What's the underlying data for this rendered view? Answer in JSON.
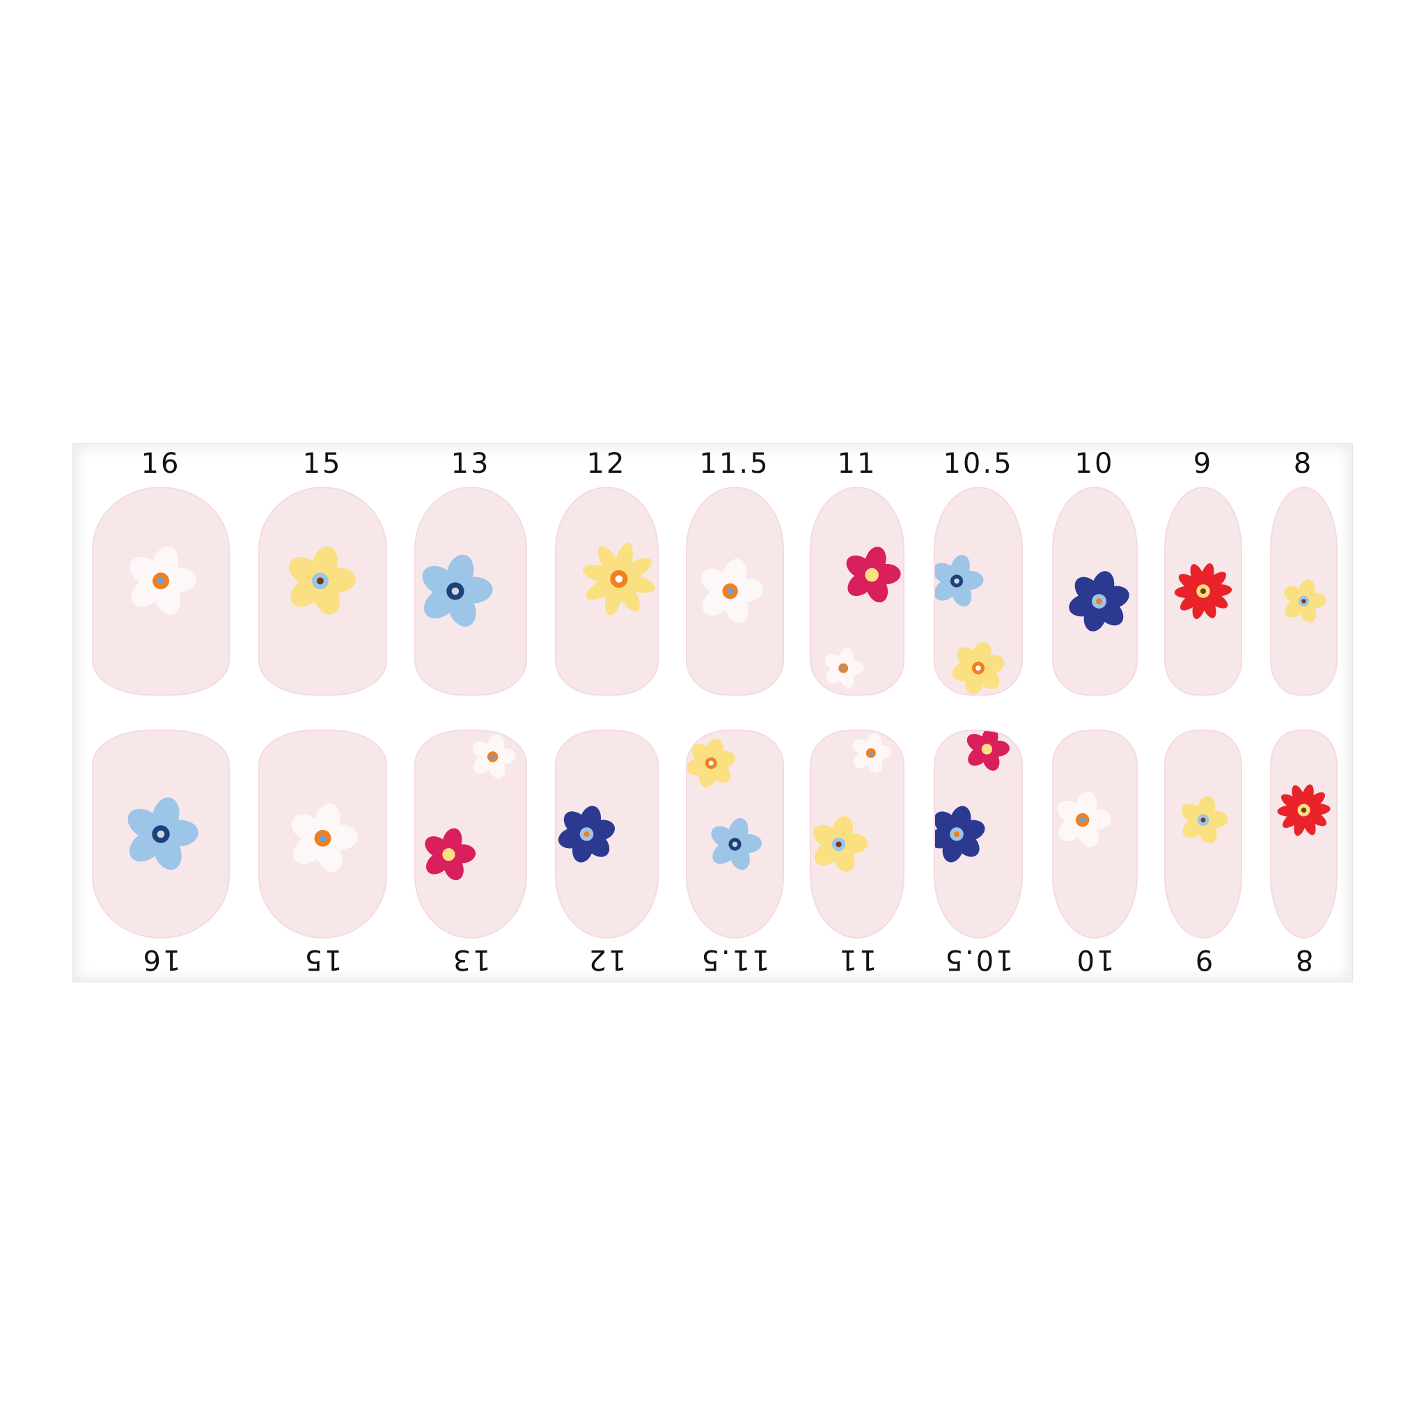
{
  "sizes_top": [
    "16",
    "15",
    "13",
    "12",
    "11.5",
    "11",
    "10.5",
    "10",
    "9",
    "8"
  ],
  "sizes_bottom": [
    "16",
    "15",
    "13",
    "12",
    "11.5",
    "11",
    "10.5",
    "10",
    "9",
    "8"
  ],
  "colors": {
    "nail_base": "#f8e7e9",
    "white_petal": "#fdf7f8",
    "yellow_petal": "#fbe082",
    "light_blue_petal": "#9cc5e8",
    "navy_petal": "#2b3990",
    "magenta_petal": "#d91f5c",
    "red_petal": "#e8232a",
    "orange_center": "#f07f22",
    "brown_center": "#7b3a1a",
    "navy_center": "#1b4279",
    "gray_center": "#cfd6e6"
  }
}
